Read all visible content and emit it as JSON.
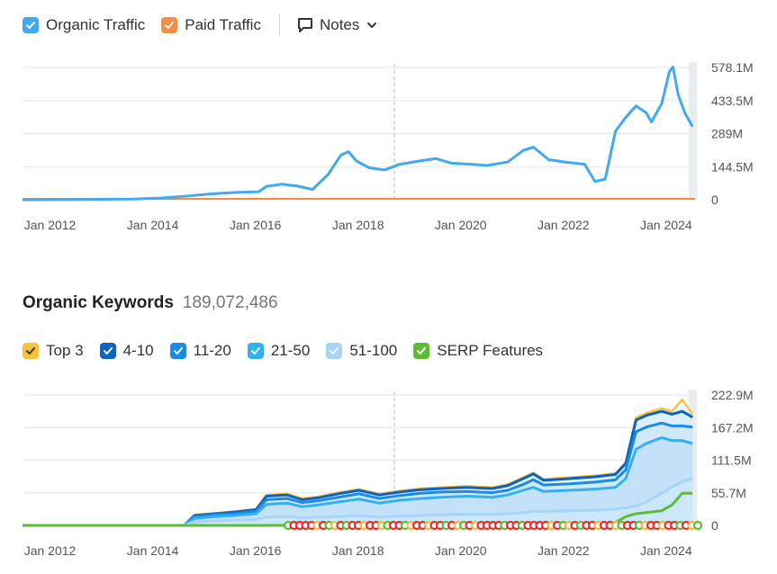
{
  "traffic_legend": {
    "items": [
      {
        "label": "Organic Traffic",
        "color": "#40a9f0"
      },
      {
        "label": "Paid Traffic",
        "color": "#f58b47"
      }
    ],
    "notes_label": "Notes"
  },
  "keywords_header": {
    "title": "Organic Keywords",
    "value": "189,072,486"
  },
  "keywords_legend": {
    "items": [
      {
        "label": "Top 3",
        "color": "#fac23b"
      },
      {
        "label": "4-10",
        "color": "#0d63c2"
      },
      {
        "label": "11-20",
        "color": "#1a8be6"
      },
      {
        "label": "21-50",
        "color": "#34b0f0"
      },
      {
        "label": "51-100",
        "color": "#a6d5f7"
      },
      {
        "label": "SERP Features",
        "color": "#5cbd34"
      }
    ]
  },
  "chart_data": [
    {
      "type": "line",
      "x_ticks": [
        "Jan 2012",
        "Jan 2014",
        "Jan 2016",
        "Jan 2018",
        "Jan 2020",
        "Jan 2022",
        "Jan 2024"
      ],
      "y_ticks": [
        "0",
        "144.5M",
        "289M",
        "433.5M",
        "578.1M"
      ],
      "ylim": [
        0,
        578.1
      ],
      "xlim": [
        2011.85,
        2024.95
      ],
      "grid": true,
      "series": [
        {
          "name": "Organic Traffic",
          "color": "#40a9f0",
          "x": [
            2011.85,
            2013.0,
            2014.0,
            2014.5,
            2015.0,
            2015.5,
            2016.0,
            2016.45,
            2016.6,
            2016.9,
            2017.2,
            2017.5,
            2017.8,
            2018.05,
            2018.2,
            2018.35,
            2018.6,
            2018.9,
            2019.2,
            2019.6,
            2019.9,
            2020.2,
            2020.6,
            2020.9,
            2021.3,
            2021.6,
            2021.8,
            2022.1,
            2022.4,
            2022.8,
            2023.0,
            2023.2,
            2023.4,
            2023.5,
            2023.6,
            2023.8,
            2024.0,
            2024.1,
            2024.3,
            2024.45,
            2024.52,
            2024.62,
            2024.75,
            2024.9
          ],
          "values": [
            0,
            1,
            3,
            7,
            15,
            25,
            32,
            35,
            58,
            68,
            60,
            45,
            110,
            195,
            210,
            170,
            140,
            130,
            155,
            170,
            180,
            160,
            155,
            150,
            165,
            215,
            230,
            175,
            165,
            155,
            80,
            90,
            300,
            330,
            360,
            410,
            380,
            340,
            420,
            560,
            580,
            460,
            380,
            320
          ]
        },
        {
          "name": "Paid Traffic",
          "color": "#f58b47",
          "x": [
            2011.85,
            2024.95
          ],
          "values": [
            0,
            0
          ]
        }
      ]
    },
    {
      "type": "area",
      "x_ticks": [
        "Jan 2012",
        "Jan 2014",
        "Jan 2016",
        "Jan 2018",
        "Jan 2020",
        "Jan 2022",
        "Jan 2024"
      ],
      "y_ticks": [
        "0",
        "55.7M",
        "111.5M",
        "167.2M",
        "222.9M"
      ],
      "ylim": [
        0,
        222.9
      ],
      "xlim": [
        2011.85,
        2024.95
      ],
      "grid": true,
      "x": [
        2011.85,
        2015.0,
        2015.2,
        2015.6,
        2016.0,
        2016.4,
        2016.6,
        2017.0,
        2017.3,
        2017.6,
        2018.0,
        2018.4,
        2018.8,
        2019.2,
        2019.6,
        2020.0,
        2020.5,
        2021.0,
        2021.3,
        2021.6,
        2021.8,
        2022.0,
        2022.5,
        2023.0,
        2023.4,
        2023.6,
        2023.8,
        2024.0,
        2024.3,
        2024.5,
        2024.7,
        2024.9
      ],
      "series": [
        {
          "name": "51-100",
          "color": "#a6d5f7",
          "values": [
            0,
            0,
            6,
            8,
            9,
            10,
            14,
            15,
            13,
            14,
            15,
            17,
            14,
            16,
            17,
            18,
            19,
            19,
            20,
            22,
            24,
            24,
            25,
            26,
            28,
            30,
            33,
            40,
            55,
            65,
            75,
            80
          ]
        },
        {
          "name": "21-50",
          "color": "#34b0f0",
          "values": [
            0,
            0,
            12,
            15,
            17,
            20,
            36,
            38,
            32,
            35,
            40,
            45,
            38,
            43,
            46,
            48,
            50,
            48,
            52,
            60,
            65,
            58,
            60,
            62,
            65,
            80,
            130,
            140,
            150,
            145,
            145,
            140
          ]
        },
        {
          "name": "11-20",
          "color": "#1a8be6",
          "values": [
            0,
            0,
            15,
            18,
            20,
            24,
            44,
            46,
            39,
            42,
            48,
            54,
            46,
            51,
            55,
            57,
            58,
            56,
            60,
            70,
            78,
            69,
            71,
            74,
            78,
            95,
            160,
            168,
            175,
            170,
            170,
            168
          ]
        },
        {
          "name": "4-10",
          "color": "#0d63c2",
          "values": [
            0,
            0,
            17,
            20,
            23,
            27,
            50,
            52,
            44,
            47,
            54,
            60,
            52,
            57,
            61,
            63,
            65,
            63,
            68,
            80,
            88,
            77,
            80,
            83,
            87,
            106,
            180,
            188,
            195,
            190,
            195,
            185
          ]
        },
        {
          "name": "Top 3",
          "color": "#fac23b",
          "values": [
            0,
            0,
            18,
            21,
            24,
            28,
            52,
            54,
            46,
            49,
            56,
            62,
            54,
            59,
            63,
            65,
            67,
            65,
            70,
            82,
            90,
            79,
            82,
            85,
            89,
            108,
            184,
            192,
            200,
            195,
            215,
            190
          ]
        },
        {
          "name": "SERP Features",
          "color": "#5cbd34",
          "values": [
            0,
            0,
            0,
            0,
            0,
            0,
            0,
            0,
            0,
            0,
            0,
            0,
            0,
            0,
            0,
            0,
            0,
            0,
            0,
            0,
            0,
            0,
            0,
            0,
            5,
            15,
            20,
            22,
            25,
            35,
            55,
            55
          ]
        }
      ]
    }
  ]
}
